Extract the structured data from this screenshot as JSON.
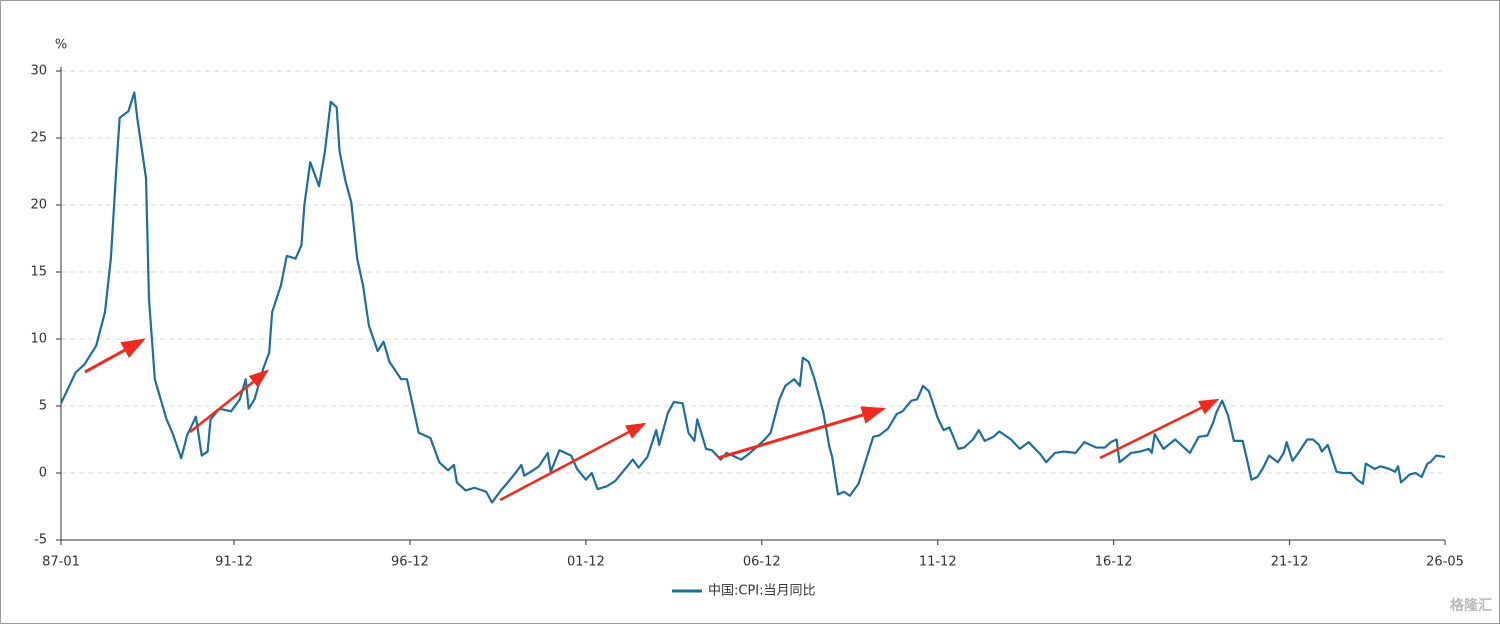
{
  "chart_data": {
    "type": "line",
    "y_unit": "%",
    "x": [
      "87-01",
      "87-06",
      "87-09",
      "88-01",
      "88-04",
      "88-06",
      "88-08",
      "88-09",
      "88-12",
      "89-02",
      "89-03",
      "89-06",
      "89-07",
      "89-09",
      "89-11",
      "90-01",
      "90-03",
      "90-06",
      "90-08",
      "90-11",
      "91-01",
      "91-03",
      "91-04",
      "91-07",
      "91-11",
      "92-02",
      "92-04",
      "92-05",
      "92-07",
      "92-10",
      "92-12",
      "93-01",
      "93-04",
      "93-06",
      "93-09",
      "93-11",
      "93-12",
      "94-02",
      "94-05",
      "94-07",
      "94-09",
      "94-11",
      "94-12",
      "95-02",
      "95-04",
      "95-06",
      "95-08",
      "95-10",
      "96-01",
      "96-03",
      "96-05",
      "96-09",
      "96-11",
      "97-01",
      "97-03",
      "97-07",
      "97-10",
      "98-01",
      "98-03",
      "98-04",
      "98-07",
      "98-10",
      "99-02",
      "99-04",
      "99-07",
      "99-09",
      "99-12",
      "00-02",
      "00-03",
      "00-06",
      "00-08",
      "00-11",
      "00-12",
      "01-03",
      "01-07",
      "01-09",
      "01-12",
      "02-02",
      "02-04",
      "02-07",
      "02-10",
      "03-01",
      "03-04",
      "03-06",
      "03-09",
      "03-12",
      "04-01",
      "04-04",
      "04-06",
      "04-09",
      "04-11",
      "05-01",
      "05-02",
      "05-05",
      "05-07",
      "05-10",
      "05-12",
      "06-05",
      "06-08",
      "07-01",
      "07-03",
      "07-06",
      "07-08",
      "07-11",
      "08-01",
      "08-02",
      "08-04",
      "08-06",
      "08-09",
      "08-11",
      "08-12",
      "09-02",
      "09-04",
      "09-06",
      "09-09",
      "09-11",
      "10-02",
      "10-04",
      "10-07",
      "10-10",
      "10-12",
      "11-03",
      "11-05",
      "11-07",
      "11-09",
      "11-12",
      "12-02",
      "12-04",
      "12-07",
      "12-09",
      "12-12",
      "13-02",
      "13-04",
      "13-07",
      "13-09",
      "14-01",
      "14-04",
      "14-07",
      "14-11",
      "15-01",
      "15-04",
      "15-07",
      "15-11",
      "16-02",
      "16-06",
      "16-09",
      "16-11",
      "17-01",
      "17-02",
      "17-06",
      "17-09",
      "17-12",
      "18-01",
      "18-02",
      "18-05",
      "18-09",
      "18-12",
      "19-02",
      "19-05",
      "19-08",
      "19-10",
      "19-11",
      "20-01",
      "20-03",
      "20-05",
      "20-08",
      "20-10",
      "20-11",
      "21-01",
      "21-03",
      "21-05",
      "21-08",
      "21-10",
      "21-11",
      "22-01",
      "22-03",
      "22-06",
      "22-08",
      "22-10",
      "22-11",
      "23-01",
      "23-04",
      "23-06",
      "23-09",
      "23-11",
      "24-01",
      "24-02",
      "24-05",
      "24-07",
      "24-10",
      "24-12",
      "25-01",
      "25-02",
      "25-05",
      "25-07",
      "25-09",
      "25-11",
      "25-12",
      "26-02",
      "26-05"
    ],
    "series": [
      {
        "name": "中国:CPI:当月同比",
        "color": "#1d6f9a",
        "values": [
          5.2,
          7.5,
          8.1,
          9.5,
          12,
          16,
          23.2,
          26.5,
          27,
          28.4,
          26.5,
          22,
          13,
          7,
          5.5,
          4,
          3,
          1.1,
          2.8,
          4.2,
          1.3,
          1.6,
          4,
          4.8,
          4.6,
          5.5,
          7,
          4.8,
          5.5,
          7.8,
          9,
          12,
          14,
          16.2,
          16,
          17,
          20,
          23.2,
          21.4,
          24,
          27.7,
          27.3,
          24,
          21.8,
          20.2,
          16,
          14,
          11,
          9.1,
          9.8,
          8.3,
          7,
          7,
          5,
          3,
          2.6,
          0.8,
          0.2,
          0.6,
          -0.7,
          -1.3,
          -1.1,
          -1.4,
          -2.2,
          -1.3,
          -0.8,
          0,
          0.6,
          -0.2,
          0.2,
          0.5,
          1.5,
          0.1,
          1.7,
          1.3,
          0.3,
          -0.5,
          0,
          -1.2,
          -1,
          -0.6,
          0.2,
          1,
          0.4,
          1.2,
          3.2,
          2.1,
          4.5,
          5.3,
          5.2,
          3,
          2.4,
          4,
          1.8,
          1.7,
          1,
          1.5,
          1,
          1.5,
          2.5,
          3,
          5.5,
          6.5,
          7,
          6.5,
          8.6,
          8.3,
          7,
          4.5,
          2,
          1.2,
          -1.6,
          -1.4,
          -1.7,
          -0.8,
          0.6,
          2.7,
          2.8,
          3.3,
          4.4,
          4.6,
          5.4,
          5.5,
          6.5,
          6.1,
          4.1,
          3.2,
          3.4,
          1.8,
          1.9,
          2.5,
          3.2,
          2.4,
          2.7,
          3.1,
          2.5,
          1.8,
          2.3,
          1.4,
          0.8,
          1.5,
          1.6,
          1.5,
          2.3,
          1.9,
          1.9,
          2.3,
          2.5,
          0.8,
          1.5,
          1.6,
          1.8,
          1.5,
          2.9,
          1.8,
          2.5,
          1.9,
          1.5,
          2.7,
          2.8,
          3.8,
          4.5,
          5.4,
          4.3,
          2.4,
          2.4,
          0.5,
          -0.5,
          -0.3,
          0.4,
          1.3,
          0.8,
          1.5,
          2.3,
          0.9,
          1.5,
          2.5,
          2.5,
          2.1,
          1.6,
          2.1,
          0.1,
          0,
          0,
          -0.5,
          -0.8,
          0.7,
          0.3,
          0.5,
          0.3,
          0.1,
          0.5,
          -0.7,
          -0.1,
          0,
          -0.3,
          0.7,
          0.8,
          1.3,
          1.2
        ]
      }
    ],
    "xlim": [
      "87-01",
      "26-05"
    ],
    "xticks": [
      "87-01",
      "91-12",
      "96-12",
      "01-12",
      "06-12",
      "11-12",
      "16-12",
      "21-12",
      "26-05"
    ],
    "ylim": [
      -5,
      30
    ],
    "yticks": [
      -5,
      0,
      5,
      10,
      15,
      20,
      25,
      30
    ],
    "grid": true,
    "legend": "bottom",
    "watermark": "格隆汇"
  }
}
